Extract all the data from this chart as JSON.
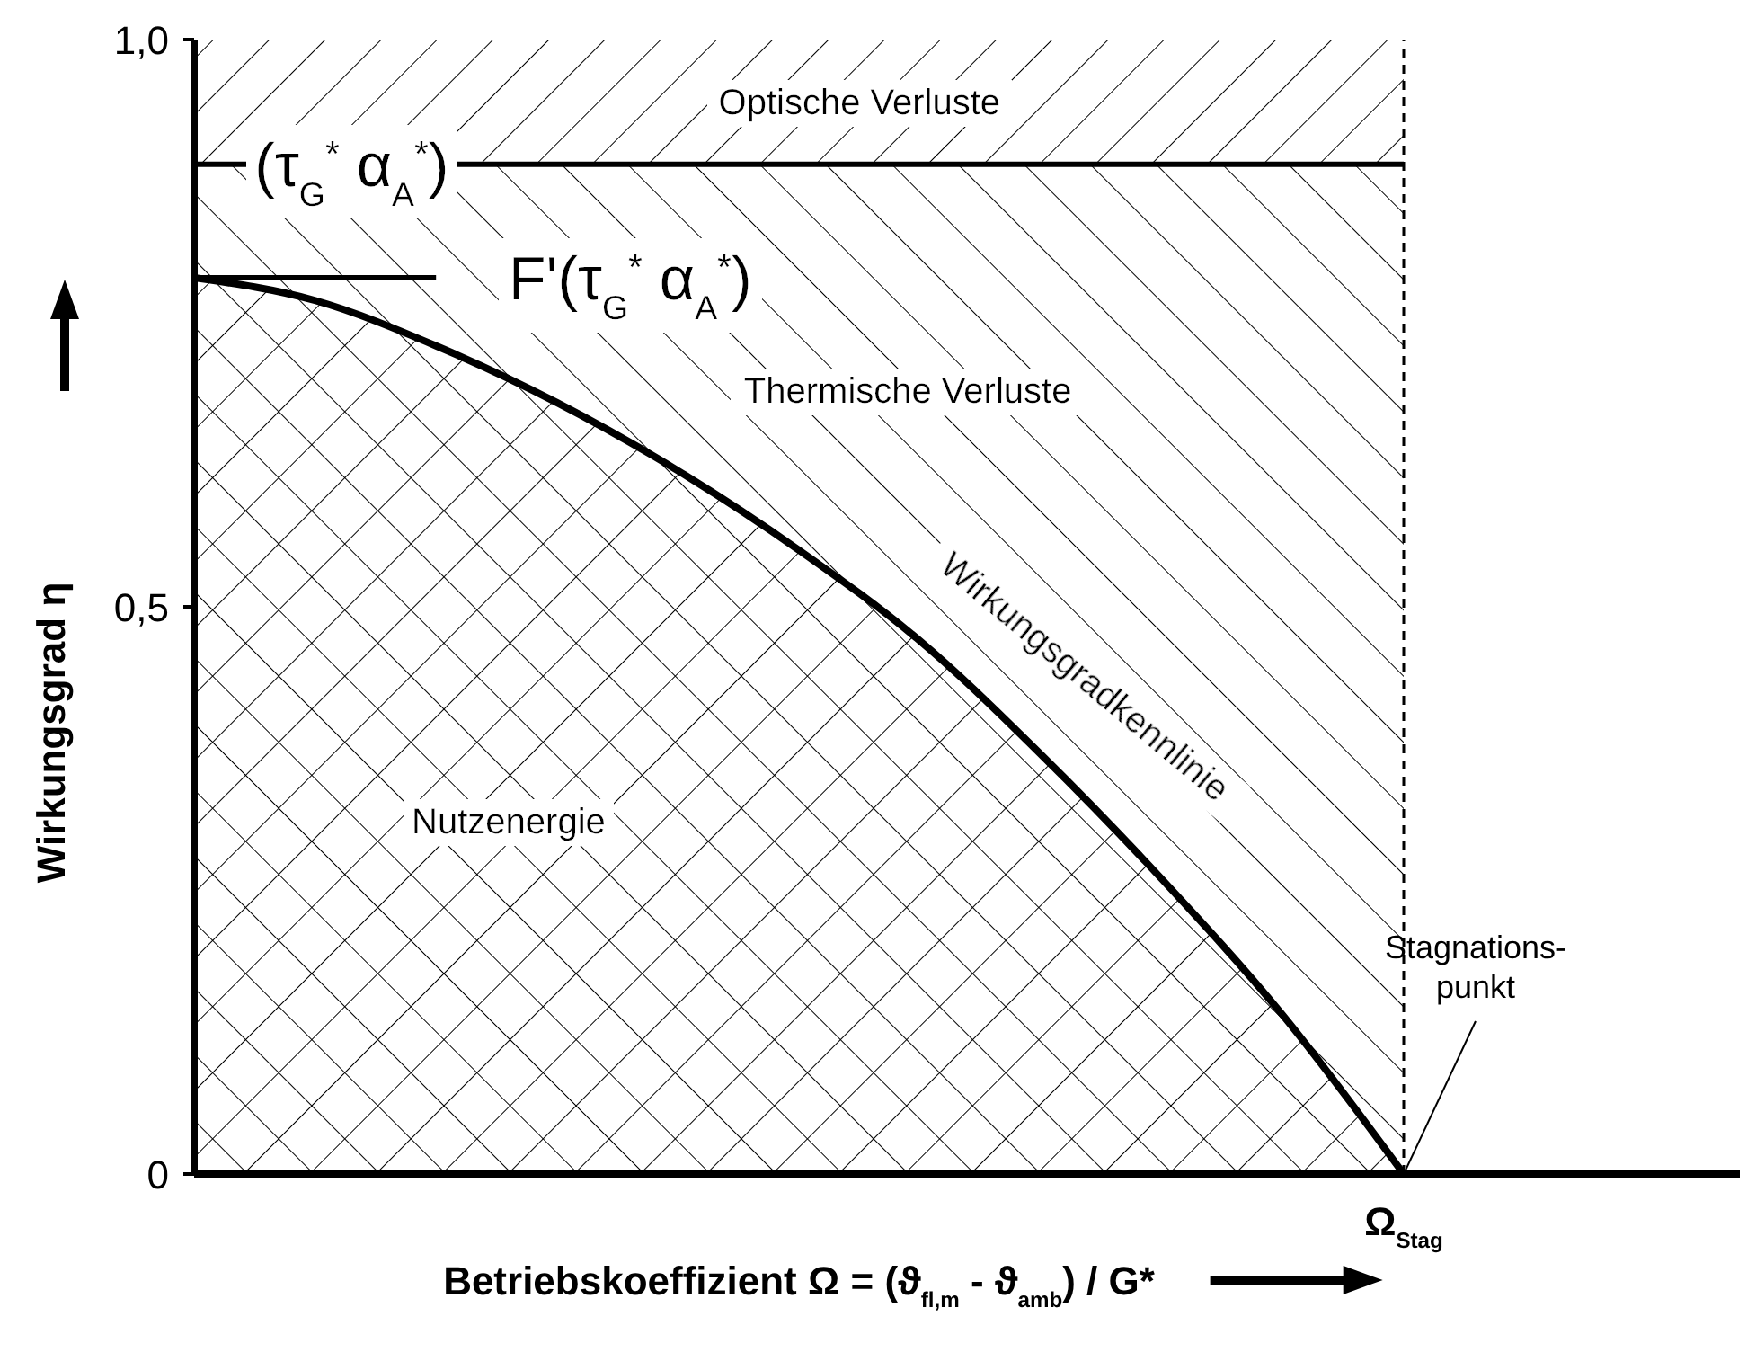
{
  "chart_data": {
    "type": "area",
    "xlabel": "Betriebskoeffizient  Ω = (ϑ$_{fl,m}$ - ϑ$_{amb}$) / G*",
    "ylabel": "Wirkungsgrad η",
    "categories": [
      null,
      null,
      null,
      null,
      null,
      null,
      null,
      null,
      null,
      null,
      "Ω$_{Stag}$"
    ],
    "series": [
      {
        "name": "Wirkungsgradkennlinie",
        "color": "#000000",
        "values": [
          0.79,
          0.77,
          0.73,
          0.68,
          0.62,
          0.55,
          0.47,
          0.37,
          0.26,
          0.14,
          0
        ]
      }
    ],
    "ylim": [
      0,
      1
    ],
    "yticks": [
      0,
      {
        "value": 0.5,
        "label": "0,5"
      },
      {
        "value": 1,
        "label": "1,0"
      }
    ],
    "ref_lines": [
      {
        "axis": "y",
        "value": 0.89,
        "label": "(τ$_{G}$$^{*}$ α$_{A}$$^{*}$)"
      },
      {
        "axis": "y",
        "value": 0.79,
        "label": "F'(τ$_{G}$$^{*}$ α$_{A}$$^{*}$)"
      },
      {
        "axis": "x",
        "value": "Ω$_{Stag}$",
        "line_style": "dashed"
      }
    ],
    "bands": [
      {
        "axis": "y",
        "from": 0.89,
        "to": 1,
        "label": "Optische Verluste"
      },
      {
        "axis": "y",
        "from": 0,
        "to": 0.89,
        "label": "Thermische Verluste"
      }
    ],
    "annotations": [
      "Nutzenergie",
      {
        "text": "Stagnations-\npunkt",
        "x": "Ω$_{Stag}$",
        "y": 0
      }
    ]
  }
}
